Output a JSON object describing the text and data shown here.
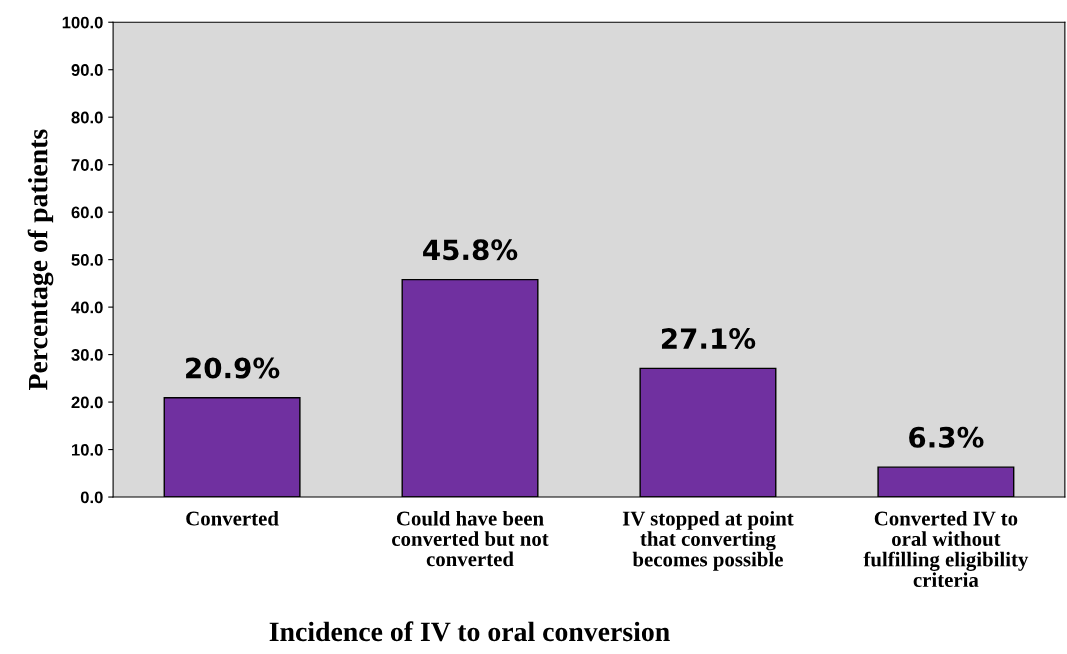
{
  "chart_data": {
    "type": "bar",
    "xlabel": "Incidence of IV to oral conversion",
    "ylabel": "Percentage of patients",
    "categories": [
      "Converted",
      "Could have been\nconverted but not\nconverted",
      "IV stopped at point\nthat converting\nbecomes possible",
      "Converted IV to\noral without\nfulfilling eligibility\ncriteria"
    ],
    "values": [
      20.9,
      45.8,
      27.1,
      6.3
    ],
    "value_labels": [
      "20.9%",
      "45.8%",
      "27.1%",
      "6.3%"
    ],
    "color": "#7030a0",
    "ylim": [
      0,
      100
    ],
    "yticks": [
      {
        "value": 0,
        "label": "0.0"
      },
      {
        "value": 10,
        "label": "10.0"
      },
      {
        "value": 20,
        "label": "20.0"
      },
      {
        "value": 30,
        "label": "30.0"
      },
      {
        "value": 40,
        "label": "40.0"
      },
      {
        "value": 50,
        "label": "50.0"
      },
      {
        "value": 60,
        "label": "60.0"
      },
      {
        "value": 70,
        "label": "70.0"
      },
      {
        "value": 80,
        "label": "80.0"
      },
      {
        "value": 90,
        "label": "90.0"
      },
      {
        "value": 100,
        "label": "100.0"
      }
    ],
    "grid": false,
    "legend": false
  }
}
